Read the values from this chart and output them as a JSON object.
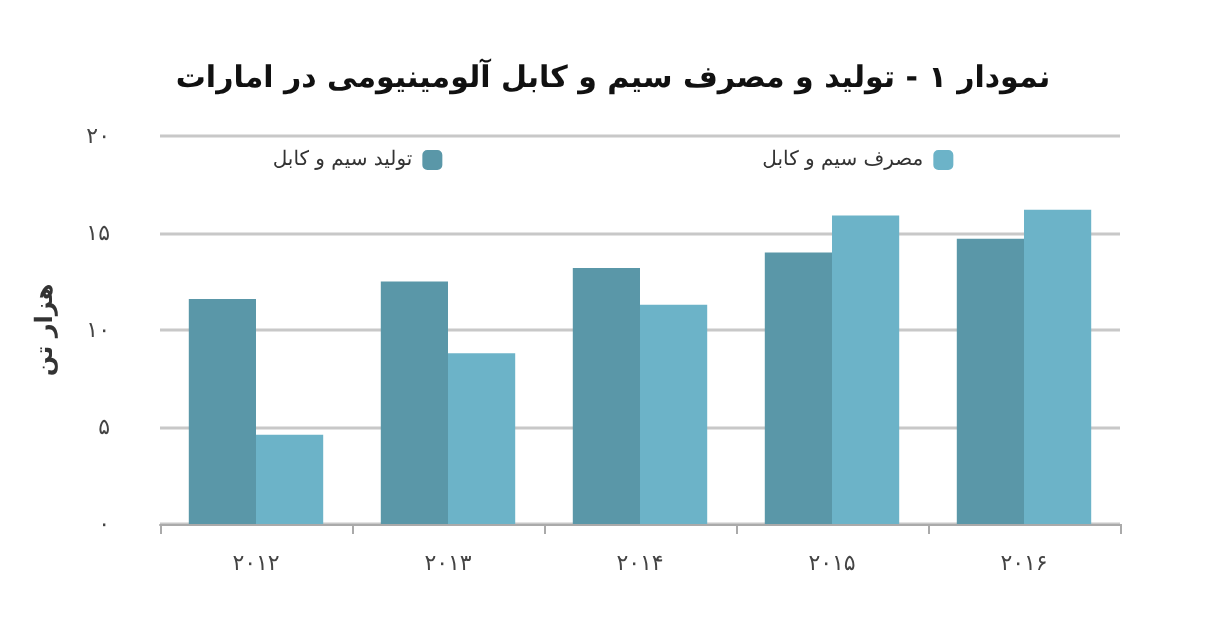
{
  "chart_data": {
    "type": "bar",
    "title": "نمودار ۱ - تولید و مصرف سیم و کابل آلومینیومی در امارات",
    "ylabel": "هزار تن",
    "categories": [
      "۲۰۱۲",
      "۲۰۱۳",
      "۲۰۱۴",
      "۲۰۱۵",
      "۲۰۱۶"
    ],
    "series": [
      {
        "name": "تولید سیم و کابل",
        "color": "#5a97a8",
        "values": [
          11.6,
          12.5,
          13.2,
          14.0,
          14.7
        ]
      },
      {
        "name": "مصرف سیم و کابل",
        "color": "#6cb3c8",
        "values": [
          4.6,
          8.8,
          11.3,
          15.9,
          16.2
        ]
      }
    ],
    "ylim": [
      0,
      20
    ],
    "yticks": [
      {
        "value": 0,
        "label": "۰"
      },
      {
        "value": 5,
        "label": "۵"
      },
      {
        "value": 10,
        "label": "۱۰"
      },
      {
        "value": 15,
        "label": "۱۵"
      },
      {
        "value": 20,
        "label": "۲۰"
      }
    ],
    "grid": "y",
    "legend": "top"
  }
}
